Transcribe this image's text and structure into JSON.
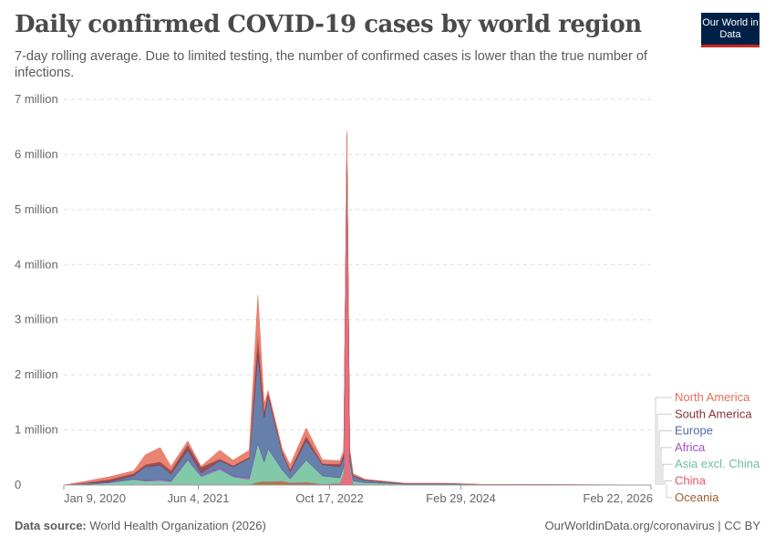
{
  "title": "Daily confirmed COVID-19 cases by world region",
  "subtitle": "7-day rolling average. Due to limited testing, the number of confirmed cases is lower than the true number of infections.",
  "logo": "Our World in Data",
  "footer": {
    "source_label": "Data source:",
    "source": "World Health Organization (2026)",
    "right": "OurWorldinData.org/coronavirus | CC BY"
  },
  "chart_data": {
    "type": "area",
    "stacked": true,
    "grid": true,
    "legend_placement": "right",
    "ylim": [
      0,
      7000000
    ],
    "y_ticks": [
      {
        "v": 0,
        "label": "0"
      },
      {
        "v": 1000000,
        "label": "1 million"
      },
      {
        "v": 2000000,
        "label": "2 million"
      },
      {
        "v": 3000000,
        "label": "3 million"
      },
      {
        "v": 4000000,
        "label": "4 million"
      },
      {
        "v": 5000000,
        "label": "5 million"
      },
      {
        "v": 6000000,
        "label": "6 million"
      },
      {
        "v": 7000000,
        "label": "7 million"
      }
    ],
    "x_ticks": [
      {
        "date": "2020-01-09",
        "label": "Jan 9, 2020"
      },
      {
        "date": "2021-06-04",
        "label": "Jun 4, 2021"
      },
      {
        "date": "2022-10-17",
        "label": "Oct 17, 2022"
      },
      {
        "date": "2024-02-29",
        "label": "Feb 29, 2024"
      },
      {
        "date": "2026-02-22",
        "label": "Feb 22, 2026"
      }
    ],
    "x": [
      "2020-01-09",
      "2020-04-01",
      "2020-07-01",
      "2020-10-01",
      "2020-11-15",
      "2021-01-10",
      "2021-02-20",
      "2021-04-25",
      "2021-06-15",
      "2021-08-25",
      "2021-10-15",
      "2021-12-15",
      "2022-01-17",
      "2022-02-10",
      "2022-02-25",
      "2022-04-20",
      "2022-05-20",
      "2022-07-20",
      "2022-09-20",
      "2022-11-25",
      "2022-12-10",
      "2022-12-22",
      "2023-01-02",
      "2023-01-15",
      "2023-03-01",
      "2023-08-01",
      "2024-01-01",
      "2024-06-01",
      "2026-02-22"
    ],
    "series": [
      {
        "name": "Oceania",
        "color": "#a2592c",
        "values": [
          0,
          0,
          0,
          0,
          0,
          0,
          0,
          0,
          0,
          2000,
          1000,
          3000,
          50000,
          60000,
          50000,
          50000,
          30000,
          40000,
          10000,
          10000,
          10000,
          10000,
          10000,
          5000,
          3000,
          1000,
          1000,
          500,
          0
        ]
      },
      {
        "name": "China",
        "color": "#e25668",
        "values": [
          0,
          1000,
          0,
          0,
          0,
          0,
          0,
          0,
          0,
          0,
          0,
          0,
          0,
          5000,
          10000,
          20000,
          10000,
          10000,
          5000,
          20000,
          200000,
          6000000,
          300000,
          10000,
          1000,
          0,
          0,
          0,
          0
        ]
      },
      {
        "name": "Asia excl. China",
        "color": "#6cbf9b",
        "values": [
          0,
          5000,
          40000,
          100000,
          70000,
          80000,
          60000,
          450000,
          150000,
          280000,
          150000,
          100000,
          700000,
          350000,
          600000,
          200000,
          70000,
          400000,
          150000,
          100000,
          120000,
          120000,
          100000,
          60000,
          40000,
          15000,
          15000,
          5000,
          1000
        ]
      },
      {
        "name": "Africa",
        "color": "#a652ba",
        "values": [
          0,
          0,
          10000,
          8000,
          10000,
          30000,
          10000,
          10000,
          20000,
          30000,
          10000,
          30000,
          20000,
          10000,
          5000,
          3000,
          3000,
          5000,
          2000,
          2000,
          2000,
          2000,
          2000,
          1000,
          1000,
          500,
          500,
          200,
          0
        ]
      },
      {
        "name": "Europe",
        "color": "#4c6a9c",
        "values": [
          0,
          30000,
          10000,
          60000,
          250000,
          250000,
          130000,
          170000,
          50000,
          130000,
          170000,
          350000,
          1600000,
          800000,
          950000,
          300000,
          130000,
          350000,
          200000,
          200000,
          180000,
          170000,
          150000,
          80000,
          40000,
          10000,
          10000,
          3000,
          1000
        ]
      },
      {
        "name": "South America",
        "color": "#883039",
        "values": [
          0,
          3000,
          40000,
          40000,
          40000,
          60000,
          60000,
          100000,
          100000,
          30000,
          20000,
          20000,
          330000,
          100000,
          50000,
          30000,
          30000,
          80000,
          20000,
          50000,
          50000,
          50000,
          40000,
          20000,
          10000,
          3000,
          3000,
          1000,
          500
        ]
      },
      {
        "name": "North America",
        "color": "#e56e5a",
        "values": [
          0,
          30000,
          50000,
          50000,
          180000,
          260000,
          80000,
          70000,
          20000,
          160000,
          100000,
          130000,
          750000,
          150000,
          50000,
          50000,
          100000,
          150000,
          70000,
          60000,
          60000,
          60000,
          50000,
          30000,
          10000,
          3000,
          3000,
          1000,
          500
        ]
      }
    ]
  }
}
